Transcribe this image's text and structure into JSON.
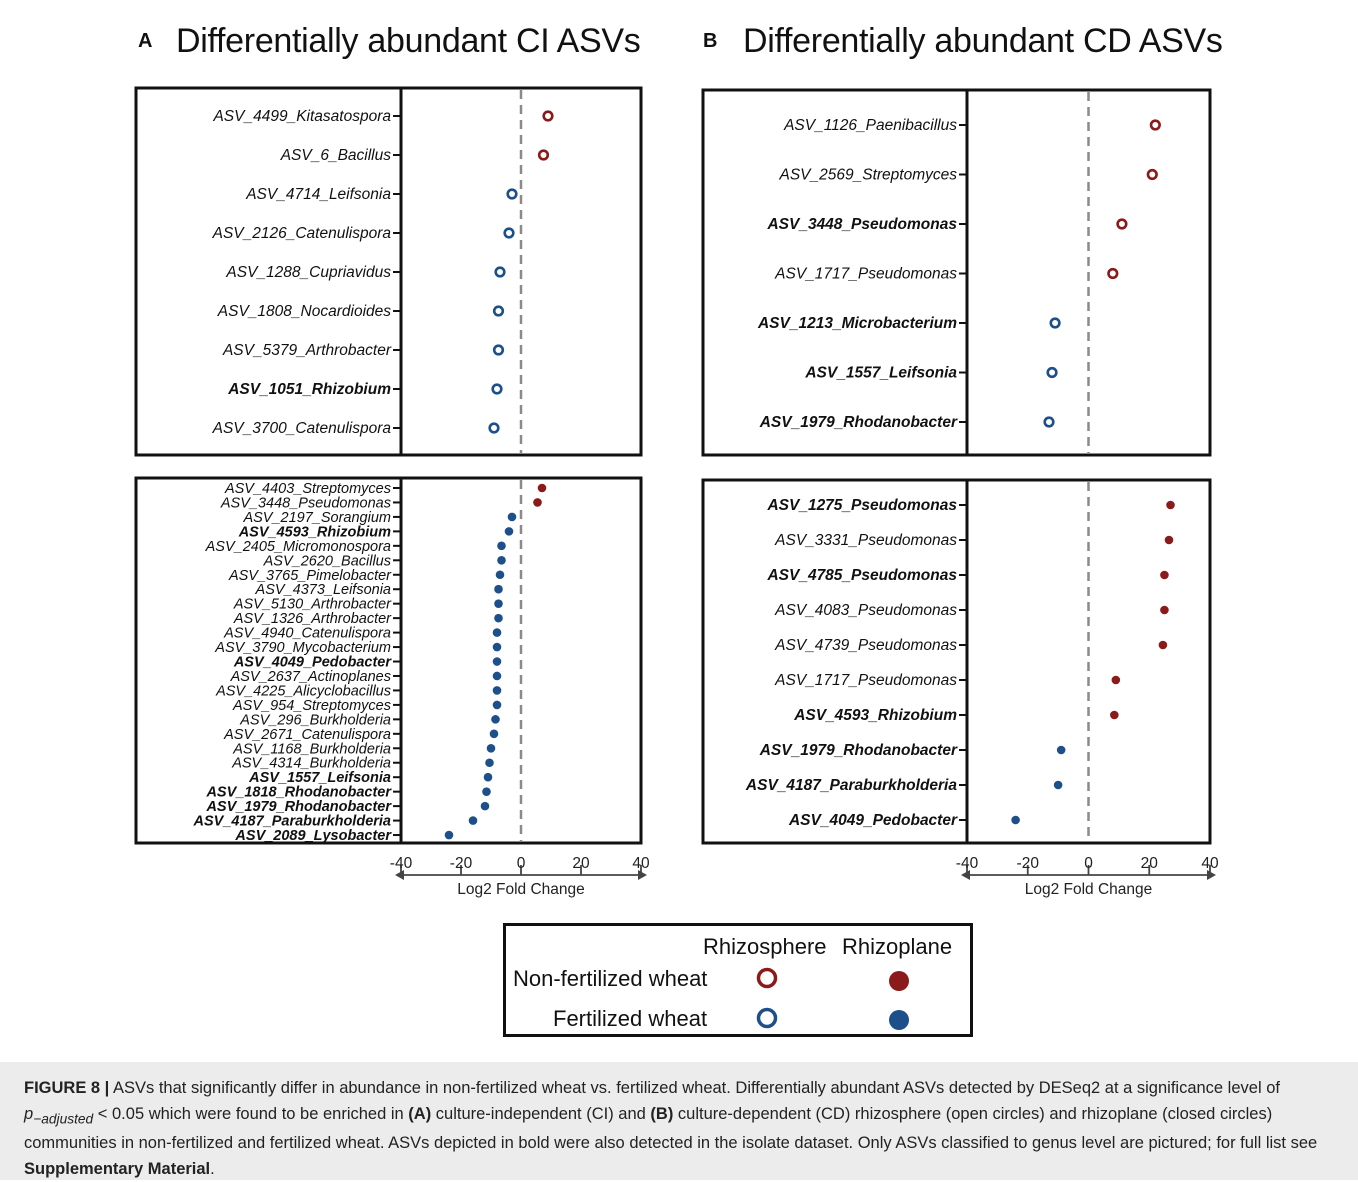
{
  "panels": {
    "a": {
      "letter": "A",
      "title": "Differentially abundant CI ASVs"
    },
    "b": {
      "letter": "B",
      "title": "Differentially abundant CD ASVs"
    }
  },
  "colors": {
    "non_fertilized": "#8b1a1a",
    "fertilized": "#1d4f8a"
  },
  "chart_data": [
    {
      "type": "scatter",
      "panel": "A",
      "subtitle": "Rhizosphere",
      "marker": "open",
      "xlim": [
        -40,
        40
      ],
      "categories": [
        "ASV_4499_Kitasatospora",
        "ASV_6_Bacillus",
        "ASV_4714_Leifsonia",
        "ASV_2126_Catenulispora",
        "ASV_1288_Cupriavidus",
        "ASV_1808_Nocardioides",
        "ASV_5379_Arthrobacter",
        "ASV_1051_Rhizobium",
        "ASV_3700_Catenulispora"
      ],
      "values": [
        9,
        7.5,
        -3,
        -4,
        -7,
        -7.5,
        -7.5,
        -8,
        -9
      ],
      "group": [
        "non_fertilized",
        "non_fertilized",
        "fertilized",
        "fertilized",
        "fertilized",
        "fertilized",
        "fertilized",
        "fertilized",
        "fertilized"
      ],
      "bold": [
        false,
        false,
        false,
        false,
        false,
        false,
        false,
        true,
        false
      ]
    },
    {
      "type": "scatter",
      "panel": "A",
      "subtitle": "Rhizoplane",
      "marker": "filled",
      "xlim": [
        -40,
        40
      ],
      "xticks": [
        -40,
        -20,
        0,
        20,
        40
      ],
      "xlabel": "Log2 Fold Change",
      "categories": [
        "ASV_4403_Streptomyces",
        "ASV_3448_Pseudomonas",
        "ASV_2197_Sorangium",
        "ASV_4593_Rhizobium",
        "ASV_2405_Micromonospora",
        "ASV_2620_Bacillus",
        "ASV_3765_Pimelobacter",
        "ASV_4373_Leifsonia",
        "ASV_5130_Arthrobacter",
        "ASV_1326_Arthrobacter",
        "ASV_4940_Catenulispora",
        "ASV_3790_Mycobacterium",
        "ASV_4049_Pedobacter",
        "ASV_2637_Actinoplanes",
        "ASV_4225_Alicyclobacillus",
        "ASV_954_Streptomyces",
        "ASV_296_Burkholderia",
        "ASV_2671_Catenulispora",
        "ASV_1168_Burkholderia",
        "ASV_4314_Burkholderia",
        "ASV_1557_Leifsonia",
        "ASV_1818_Rhodanobacter",
        "ASV_1979_Rhodanobacter",
        "ASV_4187_Paraburkholderia",
        "ASV_2089_Lysobacter"
      ],
      "values": [
        7,
        5.5,
        -3,
        -4,
        -6.5,
        -6.5,
        -7,
        -7.5,
        -7.5,
        -7.5,
        -8,
        -8,
        -8,
        -8,
        -8,
        -8,
        -8.5,
        -9,
        -10,
        -10.5,
        -11,
        -11.5,
        -12,
        -16,
        -24
      ],
      "group": [
        "non_fertilized",
        "non_fertilized",
        "fertilized",
        "fertilized",
        "fertilized",
        "fertilized",
        "fertilized",
        "fertilized",
        "fertilized",
        "fertilized",
        "fertilized",
        "fertilized",
        "fertilized",
        "fertilized",
        "fertilized",
        "fertilized",
        "fertilized",
        "fertilized",
        "fertilized",
        "fertilized",
        "fertilized",
        "fertilized",
        "fertilized",
        "fertilized",
        "fertilized"
      ],
      "bold": [
        false,
        false,
        false,
        true,
        false,
        false,
        false,
        false,
        false,
        false,
        false,
        false,
        true,
        false,
        false,
        false,
        false,
        false,
        false,
        false,
        true,
        true,
        true,
        true,
        true
      ]
    },
    {
      "type": "scatter",
      "panel": "B",
      "subtitle": "Rhizosphere",
      "marker": "open",
      "xlim": [
        -40,
        40
      ],
      "categories": [
        "ASV_1126_Paenibacillus",
        "ASV_2569_Streptomyces",
        "ASV_3448_Pseudomonas",
        "ASV_1717_Pseudomonas",
        "ASV_1213_Microbacterium",
        "ASV_1557_Leifsonia",
        "ASV_1979_Rhodanobacter"
      ],
      "values": [
        22,
        21,
        11,
        8,
        -11,
        -12,
        -13
      ],
      "group": [
        "non_fertilized",
        "non_fertilized",
        "non_fertilized",
        "non_fertilized",
        "fertilized",
        "fertilized",
        "fertilized"
      ],
      "bold": [
        false,
        false,
        true,
        false,
        true,
        true,
        true
      ]
    },
    {
      "type": "scatter",
      "panel": "B",
      "subtitle": "Rhizoplane",
      "marker": "filled",
      "xlim": [
        -40,
        40
      ],
      "xticks": [
        -40,
        -20,
        0,
        20,
        40
      ],
      "xlabel": "Log2 Fold Change",
      "categories": [
        "ASV_1275_Pseudomonas",
        "ASV_3331_Pseudomonas",
        "ASV_4785_Pseudomonas",
        "ASV_4083_Pseudomonas",
        "ASV_4739_Pseudomonas",
        "ASV_1717_Pseudomonas",
        "ASV_4593_Rhizobium",
        "ASV_1979_Rhodanobacter",
        "ASV_4187_Paraburkholderia",
        "ASV_4049_Pedobacter"
      ],
      "values": [
        27,
        26.5,
        25,
        25,
        24.5,
        9,
        8.5,
        -9,
        -10,
        -24
      ],
      "group": [
        "non_fertilized",
        "non_fertilized",
        "non_fertilized",
        "non_fertilized",
        "non_fertilized",
        "non_fertilized",
        "non_fertilized",
        "fertilized",
        "fertilized",
        "fertilized"
      ],
      "bold": [
        true,
        false,
        true,
        false,
        false,
        false,
        true,
        true,
        true,
        true
      ]
    }
  ],
  "legend": {
    "col_headers": [
      "Rhizosphere",
      "Rhizoplane"
    ],
    "rows": [
      "Non-fertilized wheat",
      "Fertilized wheat"
    ]
  },
  "caption": {
    "label": "FIGURE 8 |",
    "t1": "ASVs that significantly differ in abundance in non-fertilized wheat vs. fertilized wheat. Differentially abundant ASVs detected by DESeq2 at a significance level of",
    "p": "p",
    "p_sub": "−adjusted",
    "t2": " < 0.05 which were found to be enriched in ",
    "ref_a": "(A)",
    "t3": " culture-independent (CI) and ",
    "ref_b": "(B)",
    "t4": " culture-dependent (CD) rhizosphere (open circles) and rhizoplane (closed circles) communities in non-fertilized and fertilized wheat. ASVs depicted in bold were also detected in the isolate dataset. Only ASVs classified to genus level are pictured; for full list see ",
    "supp": "Supplementary Material",
    "t5": "."
  }
}
